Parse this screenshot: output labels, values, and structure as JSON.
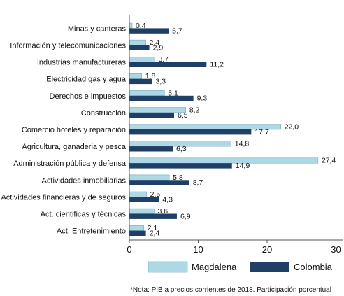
{
  "colors": {
    "magdalena": "#add8e6",
    "colombia": "#1f3f66",
    "axis": "#555555",
    "text": "#111111"
  },
  "chart_data": {
    "type": "bar",
    "orientation": "horizontal",
    "categories": [
      "Minas y canteras",
      "Información y telecomunicaciones",
      "Industrias manufactureras",
      "Electricidad gas y agua",
      "Derechos e impuestos",
      "Construcción",
      "Comercio hoteles y reparación",
      "Agricultura, ganaderia y pesca",
      "Administración pública y defensa",
      "Actividades inmobiliarias",
      "Actividades financieras y de seguros",
      "Act. cientificas y técnicas",
      "Act. Entretenimiento"
    ],
    "series": [
      {
        "name": "Magdalena",
        "values": [
          0.4,
          2.4,
          3.7,
          1.8,
          5.1,
          8.2,
          22.0,
          14.8,
          27.4,
          5.8,
          2.5,
          3.6,
          2.1
        ],
        "labels": [
          "0,4",
          "2,4",
          "3,7",
          "1,8",
          "5,1",
          "8,2",
          "22,0",
          "14,8",
          "27,4",
          "5,8",
          "2,5",
          "3,6",
          "2,1"
        ]
      },
      {
        "name": "Colombia",
        "values": [
          5.7,
          2.9,
          11.2,
          3.3,
          9.3,
          6.5,
          17.7,
          6.3,
          14.9,
          8.7,
          4.3,
          6.9,
          2.4
        ],
        "labels": [
          "5,7",
          "2,9",
          "11,2",
          "3,3",
          "9,3",
          "6,5",
          "17,7",
          "6,3",
          "14,9",
          "8,7",
          "4,3",
          "6,9",
          "2,4"
        ]
      }
    ],
    "xlim": [
      0,
      30
    ],
    "xticks": [
      0,
      10,
      20,
      30
    ],
    "grid": false,
    "legend_position": "bottom",
    "note": "*Nota: PIB a precios corrientes de 2018. Participación porcentual"
  }
}
